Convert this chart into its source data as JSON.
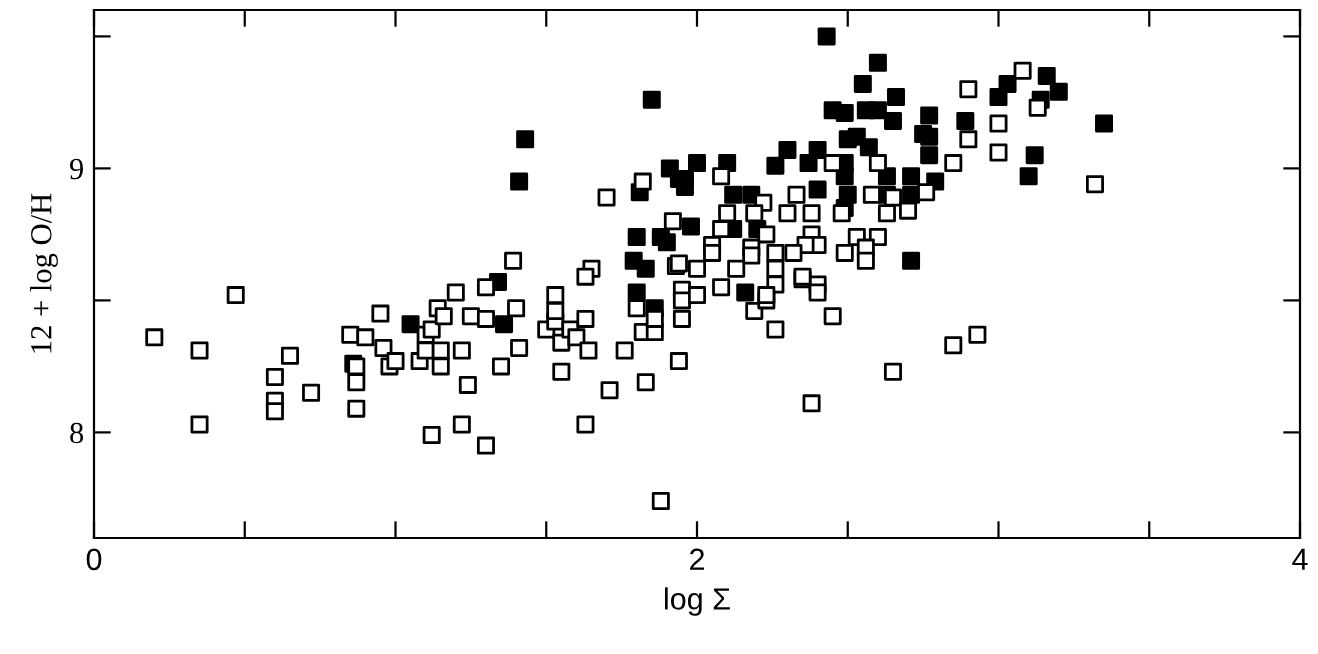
{
  "chart_data": {
    "type": "scatter",
    "xlabel": "log Σ",
    "ylabel": "12 + log O/H",
    "xlim": [
      0,
      4
    ],
    "ylim": [
      7.6,
      9.6
    ],
    "xticks": [
      0,
      {
        "value": 0.5,
        "label": null
      },
      {
        "value": 1,
        "label": null
      },
      {
        "value": 1.5,
        "label": null
      },
      2,
      {
        "value": 2.5,
        "label": null
      },
      {
        "value": 3,
        "label": null
      },
      {
        "value": 3.5,
        "label": null
      },
      4
    ],
    "yticks": [
      8,
      {
        "value": 8.5,
        "label": null
      },
      9,
      {
        "value": 9.5,
        "label": null
      }
    ],
    "grid": false,
    "legend": false,
    "marker": "square",
    "series": [
      {
        "color": "#000000",
        "x": [
          2.43,
          2.6,
          2.55,
          2.56,
          2.45,
          2.49,
          2.6,
          2.66,
          2.65,
          2.77,
          2.89,
          2.77,
          2.75,
          2.77,
          3.0,
          3.03,
          3.16,
          3.2,
          3.14,
          3.35,
          3.12,
          3.1,
          2.79,
          2.71,
          2.71,
          2.63,
          2.63,
          2.5,
          2.53,
          2.57,
          2.49,
          2.49,
          2.5,
          2.49,
          2.4,
          2.37,
          2.3,
          2.26,
          2.4,
          2.1,
          2.0,
          2.12,
          2.18,
          1.98,
          2.12,
          2.2,
          2.16,
          2.71,
          1.96,
          1.85,
          1.43,
          1.41,
          1.91,
          1.94,
          1.96,
          1.81,
          1.8,
          1.88,
          1.9,
          1.79,
          1.83,
          1.8,
          1.34,
          1.86,
          1.05,
          1.36,
          0.86
        ],
        "values": [
          9.5,
          9.4,
          9.32,
          9.22,
          9.22,
          9.21,
          9.22,
          9.27,
          9.18,
          9.2,
          9.18,
          9.12,
          9.13,
          9.05,
          9.27,
          9.32,
          9.35,
          9.29,
          9.26,
          9.17,
          9.05,
          8.97,
          8.95,
          8.97,
          8.9,
          8.97,
          8.9,
          9.11,
          9.12,
          9.08,
          9.02,
          8.97,
          8.9,
          8.85,
          9.07,
          9.02,
          9.07,
          9.01,
          8.92,
          9.02,
          9.02,
          8.9,
          8.9,
          8.78,
          8.77,
          8.77,
          8.53,
          8.65,
          8.96,
          9.26,
          9.11,
          8.95,
          9.0,
          8.96,
          8.93,
          8.91,
          8.74,
          8.74,
          8.72,
          8.65,
          8.62,
          8.53,
          8.57,
          8.47,
          8.41,
          8.41,
          8.26
        ]
      },
      {
        "color": "#ffffff",
        "x": [
          1.82,
          1.7,
          1.92,
          1.39,
          1.65,
          1.63,
          1.93,
          2.0,
          1.3,
          1.2,
          1.53,
          0.47,
          1.95,
          0.2,
          0.35,
          0.65,
          0.6,
          0.6,
          0.6,
          0.72,
          0.35,
          0.85,
          0.9,
          0.95,
          0.96,
          0.87,
          0.87,
          0.87,
          0.98,
          1.0,
          1.08,
          1.1,
          1.1,
          1.12,
          1.14,
          1.16,
          1.15,
          1.15,
          1.22,
          1.24,
          1.25,
          1.3,
          1.4,
          1.41,
          1.35,
          1.22,
          1.12,
          1.3,
          1.5,
          1.53,
          1.53,
          1.55,
          1.58,
          1.6,
          1.63,
          1.64,
          1.55,
          1.63,
          1.71,
          1.76,
          1.8,
          1.82,
          1.86,
          1.86,
          1.83,
          1.95,
          1.95,
          1.94,
          2.0,
          1.88,
          2.08,
          2.19,
          2.23,
          2.26,
          2.26,
          2.35,
          2.4,
          2.4,
          2.45,
          2.38,
          2.65,
          2.85,
          2.93,
          3.08,
          2.9,
          3.0,
          2.9,
          3.0,
          2.85,
          3.13,
          3.32,
          2.08,
          2.22,
          2.19,
          2.1,
          2.08,
          2.23,
          2.33,
          2.3,
          2.38,
          2.38,
          2.45,
          2.6,
          2.48,
          2.58,
          2.65,
          2.63,
          2.7,
          2.76,
          2.53,
          2.6,
          2.49,
          2.56,
          2.56,
          2.4,
          2.36,
          2.32,
          2.26,
          2.26,
          2.18,
          2.18,
          2.05,
          2.05,
          2.13,
          2.35,
          2.23,
          1.94
        ],
        "values": [
          8.95,
          8.89,
          8.8,
          8.65,
          8.62,
          8.59,
          8.63,
          8.62,
          8.55,
          8.53,
          8.52,
          8.52,
          8.54,
          8.36,
          8.31,
          8.29,
          8.21,
          8.12,
          8.08,
          8.15,
          8.03,
          8.37,
          8.36,
          8.45,
          8.32,
          8.25,
          8.19,
          8.09,
          8.25,
          8.27,
          8.27,
          8.31,
          8.37,
          8.39,
          8.47,
          8.44,
          8.31,
          8.25,
          8.31,
          8.18,
          8.44,
          8.43,
          8.47,
          8.32,
          8.25,
          8.03,
          7.99,
          7.95,
          8.39,
          8.42,
          8.46,
          8.34,
          8.39,
          8.36,
          8.43,
          8.31,
          8.23,
          8.03,
          8.16,
          8.31,
          8.47,
          8.38,
          8.38,
          8.43,
          8.19,
          8.5,
          8.43,
          8.27,
          8.52,
          7.74,
          8.55,
          8.46,
          8.5,
          8.56,
          8.39,
          8.58,
          8.56,
          8.53,
          8.44,
          8.11,
          8.23,
          8.33,
          8.37,
          9.37,
          9.3,
          9.17,
          9.11,
          9.06,
          9.02,
          9.23,
          8.94,
          8.97,
          8.87,
          8.83,
          8.83,
          8.77,
          8.75,
          8.9,
          8.83,
          8.83,
          8.75,
          9.02,
          9.02,
          8.83,
          8.9,
          8.89,
          8.83,
          8.84,
          8.91,
          8.74,
          8.74,
          8.68,
          8.7,
          8.65,
          8.71,
          8.71,
          8.68,
          8.68,
          8.62,
          8.7,
          8.67,
          8.71,
          8.68,
          8.62,
          8.59,
          8.52,
          8.64
        ]
      }
    ]
  }
}
